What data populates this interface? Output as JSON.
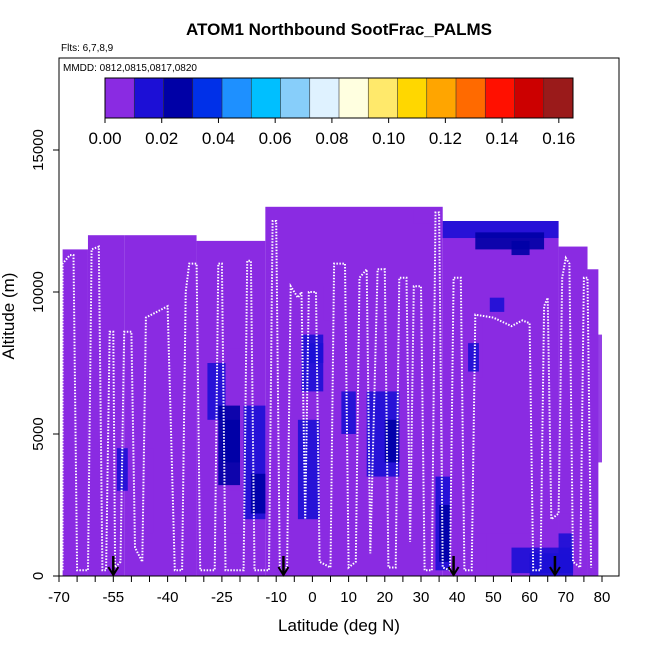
{
  "chart_data": {
    "type": "heatmap",
    "title": "ATOM1 Northbound SootFrac_PALMS",
    "flights_note": "Flts: 6,7,8,9",
    "date_note": "MMDD: 0812,0815,0817,0820",
    "xlabel": "Latitude (deg N)",
    "ylabel": "Altitude (m)",
    "xlim": [
      -70,
      82
    ],
    "ylim": [
      0,
      17500
    ],
    "x_ticks": [
      -70,
      -55,
      -40,
      -25,
      -10,
      0,
      10,
      20,
      30,
      40,
      50,
      60,
      70,
      80
    ],
    "x_minor_step": 5,
    "y_ticks": [
      0,
      5000,
      10000,
      15000
    ],
    "grid": false,
    "colorbar": {
      "min": 0,
      "max": 0.165,
      "ticks": [
        "0.00",
        "0.02",
        "0.04",
        "0.06",
        "0.08",
        "0.10",
        "0.12",
        "0.14",
        "0.16"
      ],
      "tick_values": [
        0,
        0.02,
        0.04,
        0.06,
        0.08,
        0.1,
        0.12,
        0.14,
        0.16
      ],
      "steps": 16,
      "colors": [
        "#8a2be2",
        "#1c0fd6",
        "#0000a6",
        "#0030e8",
        "#1e90ff",
        "#00bfff",
        "#87cefa",
        "#dff2ff",
        "#ffffe0",
        "#ffe96b",
        "#ffd700",
        "#ffa500",
        "#ff6a00",
        "#ff1000",
        "#cc0000",
        "#9a1a1a"
      ]
    },
    "background_value": 0.002,
    "columns": [
      {
        "x0": -69,
        "x1": -62,
        "top": 11500
      },
      {
        "x0": -62,
        "x1": -52,
        "top": 12000
      },
      {
        "x0": -52,
        "x1": -32,
        "top": 12000
      },
      {
        "x0": -32,
        "x1": -13,
        "top": 11800
      },
      {
        "x0": -13,
        "x1": 36,
        "top": 13000
      },
      {
        "x0": 36,
        "x1": 68,
        "top": 12500
      },
      {
        "x0": 68,
        "x1": 76,
        "top": 11600
      },
      {
        "x0": 76,
        "x1": 79,
        "top": 10800
      }
    ],
    "cells": [
      {
        "x0": 36,
        "x1": 68,
        "y0": 11900,
        "y1": 12500,
        "v": 0.015
      },
      {
        "x0": 45,
        "x1": 64,
        "y0": 11500,
        "y1": 12100,
        "v": 0.022
      },
      {
        "x0": 55,
        "x1": 60,
        "y0": 11300,
        "y1": 11800,
        "v": 0.025
      },
      {
        "x0": 28,
        "x1": 34,
        "y0": 12400,
        "y1": 12900,
        "v": 0.008
      },
      {
        "x0": 40,
        "x1": 55,
        "y0": 9800,
        "y1": 10400,
        "v": 0.008
      },
      {
        "x0": 49,
        "x1": 53,
        "y0": 9300,
        "y1": 9800,
        "v": 0.012
      },
      {
        "x0": -36,
        "x1": -31,
        "y0": 9600,
        "y1": 10000,
        "v": 0.01
      },
      {
        "x0": -24,
        "x1": -17,
        "y0": 8000,
        "y1": 10200,
        "v": 0.008
      },
      {
        "x0": -29,
        "x1": -24,
        "y0": 5500,
        "y1": 7500,
        "v": 0.012
      },
      {
        "x0": -26,
        "x1": -20,
        "y0": 3200,
        "y1": 6000,
        "v": 0.022
      },
      {
        "x0": -25,
        "x1": -20,
        "y0": 4000,
        "y1": 5500,
        "v": 0.025
      },
      {
        "x0": -19,
        "x1": -13,
        "y0": 2000,
        "y1": 6000,
        "v": 0.015
      },
      {
        "x0": -17,
        "x1": -13,
        "y0": 2200,
        "y1": 3600,
        "v": 0.03
      },
      {
        "x0": -30,
        "x1": -20,
        "y0": 1500,
        "y1": 3000,
        "v": 0.006
      },
      {
        "x0": -48,
        "x1": -44,
        "y0": 1500,
        "y1": 4500,
        "v": 0.008
      },
      {
        "x0": -54,
        "x1": -51,
        "y0": 3000,
        "y1": 4500,
        "v": 0.02
      },
      {
        "x0": -63,
        "x1": -58,
        "y0": 5500,
        "y1": 7000,
        "v": 0.008
      },
      {
        "x0": -3,
        "x1": 3,
        "y0": 6500,
        "y1": 8500,
        "v": 0.015
      },
      {
        "x0": -1,
        "x1": 3,
        "y0": 7500,
        "y1": 8200,
        "v": 0.02
      },
      {
        "x0": -4,
        "x1": 2,
        "y0": 2000,
        "y1": 5500,
        "v": 0.012
      },
      {
        "x0": 5,
        "x1": 11,
        "y0": 5500,
        "y1": 7500,
        "v": 0.01
      },
      {
        "x0": 3,
        "x1": 9,
        "y0": 9000,
        "y1": 10200,
        "v": 0.008
      },
      {
        "x0": 8,
        "x1": 12,
        "y0": 5000,
        "y1": 6500,
        "v": 0.015
      },
      {
        "x0": 15,
        "x1": 24,
        "y0": 3500,
        "y1": 6500,
        "v": 0.014
      },
      {
        "x0": 20,
        "x1": 24,
        "y0": 4000,
        "y1": 5500,
        "v": 0.022
      },
      {
        "x0": 17,
        "x1": 23,
        "y0": 1500,
        "y1": 3000,
        "v": 0.008
      },
      {
        "x0": 28,
        "x1": 32,
        "y0": 2000,
        "y1": 4000,
        "v": 0.01
      },
      {
        "x0": 34,
        "x1": 38,
        "y0": 200,
        "y1": 3500,
        "v": 0.015
      },
      {
        "x0": 35,
        "x1": 38,
        "y0": 500,
        "y1": 2500,
        "v": 0.03
      },
      {
        "x0": 42,
        "x1": 47,
        "y0": 7000,
        "y1": 9000,
        "v": 0.01
      },
      {
        "x0": 43,
        "x1": 46,
        "y0": 7200,
        "y1": 8200,
        "v": 0.018
      },
      {
        "x0": 40,
        "x1": 50,
        "y0": 200,
        "y1": 1500,
        "v": 0.006
      },
      {
        "x0": 48,
        "x1": 68,
        "y0": 100,
        "y1": 1500,
        "v": 0.008
      },
      {
        "x0": 55,
        "x1": 72,
        "y0": 100,
        "y1": 1000,
        "v": 0.012
      },
      {
        "x0": 60,
        "x1": 72,
        "y0": 0,
        "y1": 800,
        "v": 0.016
      },
      {
        "x0": 63,
        "x1": 71,
        "y0": 1200,
        "y1": 2200,
        "v": 0.008
      },
      {
        "x0": 68,
        "x1": 72,
        "y0": 200,
        "y1": 1500,
        "v": 0.018
      },
      {
        "x0": 76,
        "x1": 80,
        "y0": 4000,
        "y1": 8500,
        "v": 0.008
      },
      {
        "x0": 71,
        "x1": 75,
        "y0": 4500,
        "y1": 5500,
        "v": 0.006
      }
    ],
    "flight_path": [
      [
        -69,
        200
      ],
      [
        -69,
        11000
      ],
      [
        -67,
        11300
      ],
      [
        -66,
        11300
      ],
      [
        -65,
        200
      ],
      [
        -62,
        200
      ],
      [
        -61,
        11500
      ],
      [
        -59,
        11600
      ],
      [
        -58,
        200
      ],
      [
        -57,
        200
      ],
      [
        -56,
        8600
      ],
      [
        -55,
        8600
      ],
      [
        -54.5,
        300
      ],
      [
        -53,
        500
      ],
      [
        -52,
        8600
      ],
      [
        -50,
        8600
      ],
      [
        -49,
        1000
      ],
      [
        -47,
        500
      ],
      [
        -46,
        9100
      ],
      [
        -40,
        9500
      ],
      [
        -38,
        200
      ],
      [
        -36,
        200
      ],
      [
        -35,
        10000
      ],
      [
        -34,
        11000
      ],
      [
        -32,
        11000
      ],
      [
        -31,
        200
      ],
      [
        -27,
        200
      ],
      [
        -26,
        11000
      ],
      [
        -25,
        11000
      ],
      [
        -24,
        200
      ],
      [
        -19,
        200
      ],
      [
        -18,
        11100
      ],
      [
        -17,
        11100
      ],
      [
        -16,
        200
      ],
      [
        -12,
        200
      ],
      [
        -11,
        12500
      ],
      [
        -10,
        12500
      ],
      [
        -9,
        200
      ],
      [
        -7,
        300
      ],
      [
        -6,
        10200
      ],
      [
        -4,
        9800
      ],
      [
        -3,
        10000
      ],
      [
        -2,
        2000
      ],
      [
        -1,
        10000
      ],
      [
        1,
        10000
      ],
      [
        2,
        500
      ],
      [
        5,
        300
      ],
      [
        6,
        11000
      ],
      [
        9,
        11000
      ],
      [
        10,
        300
      ],
      [
        12,
        500
      ],
      [
        13,
        10500
      ],
      [
        15,
        10800
      ],
      [
        16,
        800
      ],
      [
        18,
        10800
      ],
      [
        20,
        10800
      ],
      [
        21,
        300
      ],
      [
        23,
        300
      ],
      [
        24,
        10500
      ],
      [
        26,
        10500
      ],
      [
        27,
        1200
      ],
      [
        28,
        10200
      ],
      [
        30,
        10200
      ],
      [
        31,
        200
      ],
      [
        33,
        200
      ],
      [
        34,
        12800
      ],
      [
        35,
        12800
      ],
      [
        36,
        300
      ],
      [
        38,
        200
      ],
      [
        39,
        10500
      ],
      [
        41,
        10500
      ],
      [
        42,
        200
      ],
      [
        44,
        200
      ],
      [
        45,
        9200
      ],
      [
        50,
        9100
      ],
      [
        55,
        8800
      ],
      [
        58,
        9000
      ],
      [
        60,
        8900
      ],
      [
        61,
        200
      ],
      [
        63,
        200
      ],
      [
        64,
        9500
      ],
      [
        65,
        9800
      ],
      [
        66,
        2000
      ],
      [
        68,
        2200
      ],
      [
        69,
        10500
      ],
      [
        70,
        11200
      ],
      [
        71,
        11000
      ],
      [
        72,
        500
      ],
      [
        74,
        300
      ],
      [
        75,
        10500
      ],
      [
        76,
        10500
      ],
      [
        77,
        300
      ]
    ],
    "profile_markers": [
      -55,
      -8,
      39,
      67
    ]
  }
}
